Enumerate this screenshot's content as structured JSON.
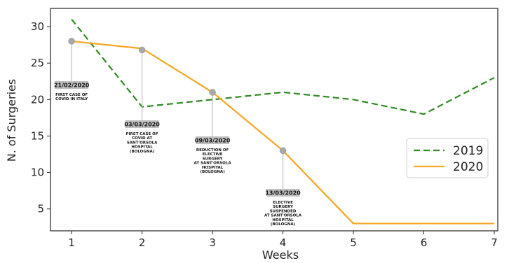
{
  "chart_data": {
    "type": "line",
    "title": "",
    "xlabel": "Weeks",
    "ylabel": "N. of Surgeries",
    "x": [
      1,
      2,
      3,
      4,
      5,
      6,
      7
    ],
    "xlim": [
      0.7,
      7.05
    ],
    "ylim": [
      2,
      32.5
    ],
    "xticks": [
      1,
      2,
      3,
      4,
      5,
      6,
      7
    ],
    "yticks": [
      5,
      10,
      15,
      20,
      25,
      30
    ],
    "grid": false,
    "legend_position": "right",
    "series": [
      {
        "name": "2019",
        "values": [
          31,
          19,
          20,
          21,
          20,
          18,
          23
        ],
        "color": "#2e8b22",
        "style": "dashed"
      },
      {
        "name": "2020",
        "values": [
          28,
          27,
          21,
          13,
          3,
          3,
          3
        ],
        "color": "#f5a623",
        "style": "solid"
      }
    ],
    "annotations": [
      {
        "x": 1,
        "y": 28,
        "date": "21/02/2020",
        "lines": [
          "FIRST CASE OF",
          "COVID IN ITALY"
        ]
      },
      {
        "x": 2,
        "y": 26.8,
        "date": "03/03/2020",
        "lines": [
          "FIRST CASE OF",
          "COVID AT",
          "SANT'ORSOLA",
          "HOSPITAL",
          "(BOLOGNA)"
        ]
      },
      {
        "x": 3,
        "y": 21,
        "date": "09/03/2020",
        "lines": [
          "REDUCTION OF",
          "ELECTIVE",
          "SURGERY",
          "AT SANT'ORSOLA",
          "HOSPITAL",
          "(BOLOGNA)"
        ]
      },
      {
        "x": 4,
        "y": 13,
        "date": "13/03/2020",
        "lines": [
          "ELECTIVE",
          "SURGERY",
          "SUSPENDED",
          "AT SANT'ORSOLA",
          "HOSPITAL",
          "(BOLOGNA)"
        ]
      }
    ]
  }
}
